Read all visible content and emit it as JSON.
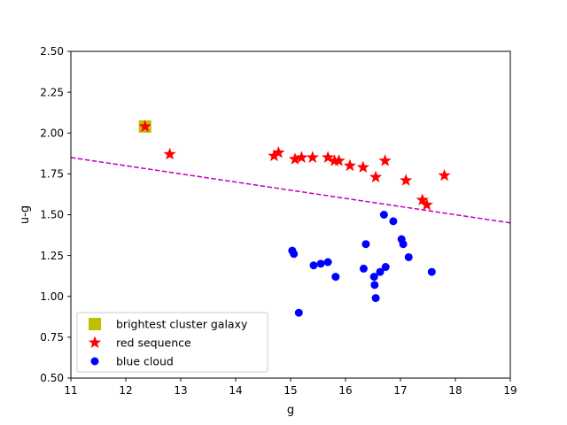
{
  "chart_data": {
    "type": "scatter",
    "title": "",
    "xlabel": "g",
    "ylabel": "u-g",
    "xlim": [
      11,
      19
    ],
    "ylim": [
      0.5,
      2.5
    ],
    "xticks": [
      11,
      12,
      13,
      14,
      15,
      16,
      17,
      18,
      19
    ],
    "xtick_labels": [
      "11",
      "12",
      "13",
      "14",
      "15",
      "16",
      "17",
      "18",
      "19"
    ],
    "yticks": [
      0.5,
      0.75,
      1.0,
      1.25,
      1.5,
      1.75,
      2.0,
      2.25,
      2.5
    ],
    "ytick_labels": [
      "0.50",
      "0.75",
      "1.00",
      "1.25",
      "1.50",
      "1.75",
      "2.00",
      "2.25",
      "2.50"
    ],
    "grid": false,
    "legend_position": "lower-left",
    "divider_line": {
      "x": [
        11,
        19
      ],
      "y": [
        1.85,
        1.45
      ],
      "color": "#bf00bf",
      "style": "dashed"
    },
    "series": [
      {
        "name": "brightest cluster galaxy",
        "marker": "square",
        "color": "#bfbf00",
        "x": [
          12.35
        ],
        "y": [
          2.04
        ]
      },
      {
        "name": "red sequence",
        "marker": "star",
        "color": "#ff0000",
        "x": [
          12.35,
          12.8,
          14.7,
          14.78,
          15.08,
          15.2,
          15.4,
          15.68,
          15.8,
          15.88,
          16.08,
          16.32,
          16.55,
          16.72,
          17.1,
          17.4,
          17.48,
          17.8
        ],
        "y": [
          2.04,
          1.87,
          1.86,
          1.88,
          1.84,
          1.85,
          1.85,
          1.85,
          1.83,
          1.83,
          1.8,
          1.79,
          1.73,
          1.83,
          1.71,
          1.59,
          1.56,
          1.74
        ]
      },
      {
        "name": "blue cloud",
        "marker": "circle",
        "color": "#0000ff",
        "x": [
          15.03,
          15.06,
          15.15,
          15.42,
          15.55,
          15.68,
          15.82,
          16.33,
          16.37,
          16.52,
          16.53,
          16.55,
          16.63,
          16.7,
          16.73,
          16.87,
          17.02,
          17.05,
          17.15,
          17.57
        ],
        "y": [
          1.28,
          1.26,
          0.9,
          1.19,
          1.2,
          1.21,
          1.12,
          1.17,
          1.32,
          1.12,
          1.07,
          0.99,
          1.15,
          1.5,
          1.18,
          1.46,
          1.35,
          1.32,
          1.24,
          1.15
        ]
      }
    ]
  }
}
